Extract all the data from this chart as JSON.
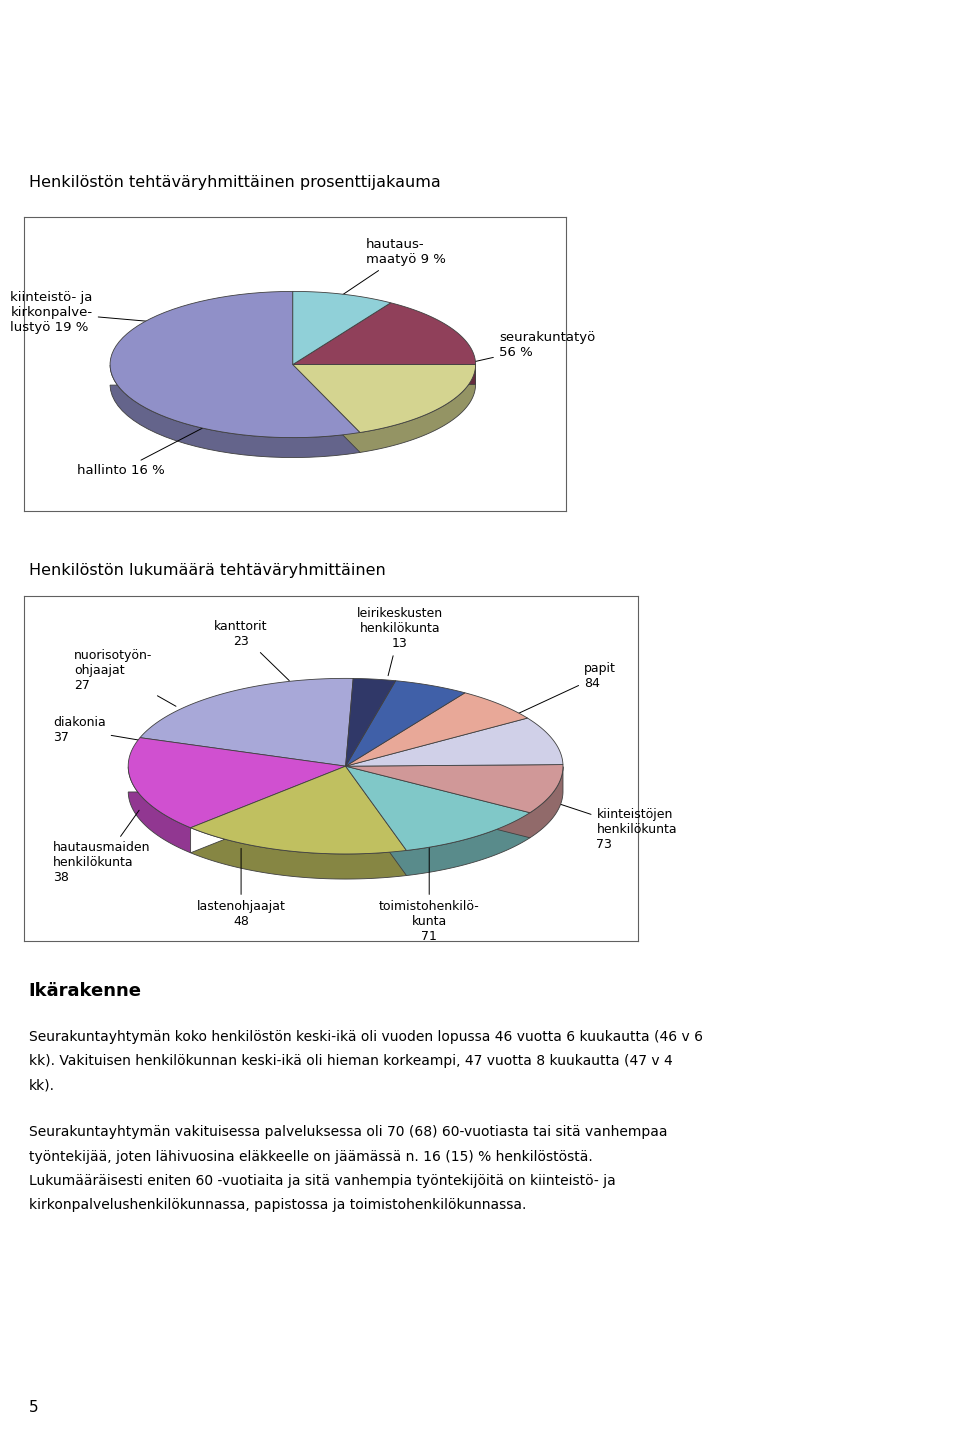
{
  "title1": "Henkilöstön tehtäväryhmittäinen prosenttijakauma",
  "title2": "Henkilöstön lukumäärä tehtäväryhmittäinen",
  "title3": "Ikärakenne",
  "pie1_values": [
    56,
    19,
    16,
    9
  ],
  "pie1_colors": [
    "#9090c8",
    "#d4d490",
    "#90405a",
    "#90d0d8"
  ],
  "pie1_labels": [
    "seurakuntatyö\n56 %",
    "kiinteistö- ja\nkirkonpalve-\nlustyö 19 %",
    "hallinto 16 %",
    "hautaus-\nmaatyö 9 %"
  ],
  "pie2_values": [
    84,
    73,
    71,
    48,
    38,
    37,
    27,
    23,
    13
  ],
  "pie2_colors": [
    "#a8a8d8",
    "#d050d0",
    "#c0c060",
    "#80c8c8",
    "#d09898",
    "#d0d0e8",
    "#e8a898",
    "#4060a8",
    "#303868"
  ],
  "pie2_labels": [
    "papit\n84",
    "kiinteistöjen\nhenkilökunta\n73",
    "toimistohenkilö-\nkunta\n71",
    "lastenohjaajat\n48",
    "hautausmaiden\nhenkilökunta\n38",
    "diakonia\n37",
    "nuorisotyön-\nohjaajat\n27",
    "kanttorit\n23",
    "leirikeskusten\nhenkilökunta\n13"
  ],
  "para1": "Seurakuntayhtymän koko henkilöstön keski-ikä oli vuoden lopussa 46 vuotta 6 kuukautta (46 v 6 kk). Vakituisen henkilökunnan keski-ikä oli hieman korkeampi, 47 vuotta 8 kuukautta (47 v 4 kk).",
  "para2": "Seurakuntayhtymän vakituisessa palveluksessa oli 70 (68) 60-vuotiasta tai sitä vanhempaa työntekijää, joten lähivuosina eläkkeelle on jäämässä n. 16 (15) % henkilöstöstä. Lukumääräisesti eniten 60 -vuotiaita ja sitä vanhempia työntekijöitä on kiinteistö- ja kirkonpalvelushenkilökunnassa, papistossa ja toimistohenkilökunnassa.",
  "page_number": "5"
}
